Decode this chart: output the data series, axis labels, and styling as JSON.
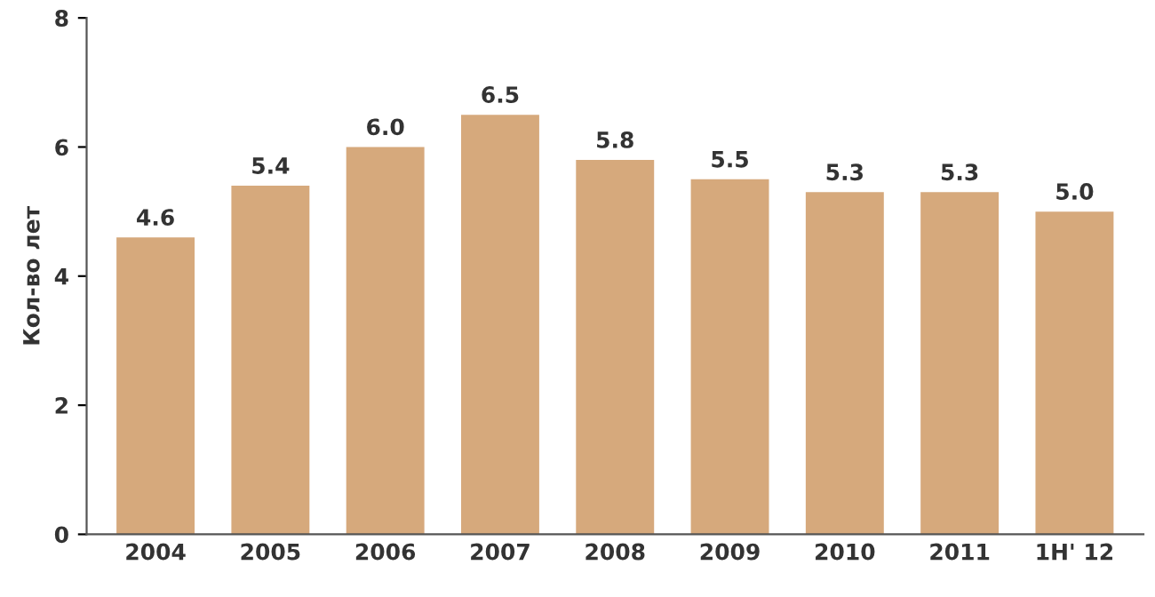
{
  "chart_data": {
    "type": "bar",
    "ylabel": "Кол-во лет",
    "categories": [
      "2004",
      "2005",
      "2006",
      "2007",
      "2008",
      "2009",
      "2010",
      "2011",
      "1H' 12"
    ],
    "values": [
      4.6,
      5.4,
      6.0,
      6.5,
      5.8,
      5.5,
      5.3,
      5.3,
      5.0
    ],
    "color": "#d6a97c",
    "value_labels": [
      "4.6",
      "5.4",
      "6.0",
      "6.5",
      "5.8",
      "5.5",
      "5.3",
      "5.3",
      "5.0"
    ],
    "ylim": [
      0,
      8
    ],
    "yticks": [
      0,
      2,
      4,
      6,
      8
    ],
    "grid": false,
    "legend": false
  }
}
